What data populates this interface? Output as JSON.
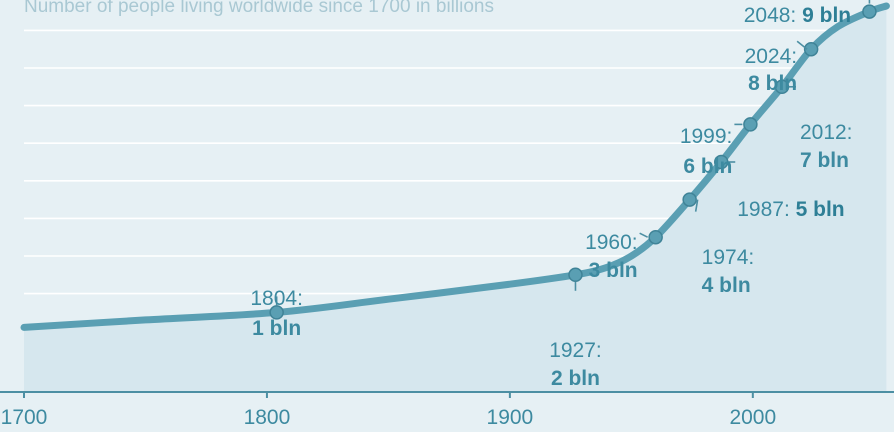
{
  "subtitle": "Number of people living worldwide since 1700 in billions",
  "colors": {
    "line": "#5a9fb3",
    "area": "#d6e7ee",
    "background": "#e6f0f4",
    "text": "#3d8aa0",
    "marker": "#5a9fb3"
  },
  "chart_data": {
    "type": "area",
    "title": "",
    "subtitle": "Number of people living worldwide since 1700 in billions",
    "xlabel": "",
    "ylabel": "",
    "xlim": [
      1700,
      2050
    ],
    "ylim": [
      0,
      9.5
    ],
    "grid": true,
    "x_ticks": [
      "1700",
      "1800",
      "1900",
      "2000"
    ],
    "series": [
      {
        "x": [
          1700,
          1750,
          1804,
          1850,
          1900,
          1927,
          1940,
          1950,
          1960,
          1974,
          1987,
          1999,
          2012,
          2024,
          2035,
          2048,
          2055
        ],
        "values": [
          0.6,
          0.8,
          1,
          1.35,
          1.75,
          2,
          2.2,
          2.5,
          3,
          4,
          5,
          6,
          7,
          8,
          8.6,
          9,
          9.15
        ]
      }
    ],
    "milestones": [
      {
        "year": 1804,
        "value": 1,
        "year_label": "1804:",
        "value_label": "1 bln"
      },
      {
        "year": 1927,
        "value": 2,
        "year_label": "1927:",
        "value_label": "2 bln"
      },
      {
        "year": 1960,
        "value": 3,
        "year_label": "1960:",
        "value_label": "3 bln"
      },
      {
        "year": 1974,
        "value": 4,
        "year_label": "1974:",
        "value_label": "4 bln"
      },
      {
        "year": 1987,
        "value": 5,
        "year_label": "1987:",
        "value_label": "5 bln"
      },
      {
        "year": 1999,
        "value": 6,
        "year_label": "1999:",
        "value_label": "6 bln"
      },
      {
        "year": 2012,
        "value": 7,
        "year_label": "2012:",
        "value_label": "7 bln"
      },
      {
        "year": 2024,
        "value": 8,
        "year_label": "2024:",
        "value_label": "8 bln"
      },
      {
        "year": 2048,
        "value": 9,
        "year_label": "2048:",
        "value_label": "9 bln"
      }
    ]
  }
}
